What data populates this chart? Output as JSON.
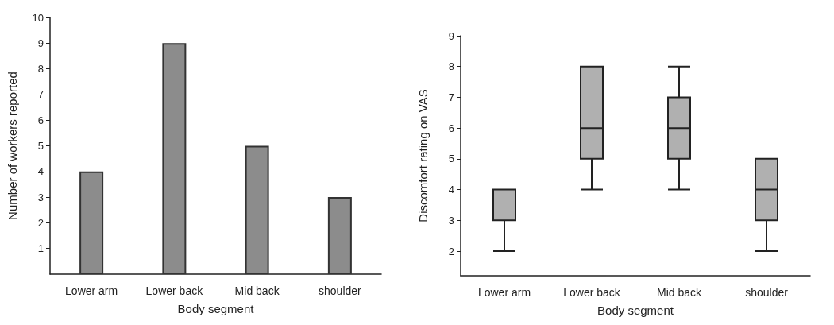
{
  "chart_data": [
    {
      "type": "bar",
      "xlabel": "Body segment",
      "ylabel": "Number of workers reported",
      "categories": [
        "Lower arm",
        "Lower back",
        "Mid back",
        "shoulder"
      ],
      "values": [
        4,
        9,
        5,
        3
      ],
      "color": "#8c8c8c",
      "ylim": [
        0,
        10
      ],
      "yticks": [
        1,
        2,
        3,
        4,
        5,
        6,
        7,
        8,
        9,
        10
      ],
      "grid": false
    },
    {
      "type": "box",
      "xlabel": "Body segment",
      "ylabel": "Discomfort rating on VAS",
      "categories": [
        "Lower arm",
        "Lower back",
        "Mid back",
        "shoulder"
      ],
      "color": "#b0b0b0",
      "boxes": [
        {
          "low": 2,
          "q1": 3,
          "median": 3,
          "q3": 4,
          "high": 4
        },
        {
          "low": 4,
          "q1": 5,
          "median": 6,
          "q3": 8,
          "high": 8
        },
        {
          "low": 4,
          "q1": 5,
          "median": 6,
          "q3": 7,
          "high": 8
        },
        {
          "low": 2,
          "q1": 3,
          "median": 4,
          "q3": 5,
          "high": 5
        }
      ],
      "ylim": [
        1.2,
        9
      ],
      "yticks": [
        2,
        3,
        4,
        5,
        6,
        7,
        8,
        9
      ],
      "grid": false
    }
  ]
}
